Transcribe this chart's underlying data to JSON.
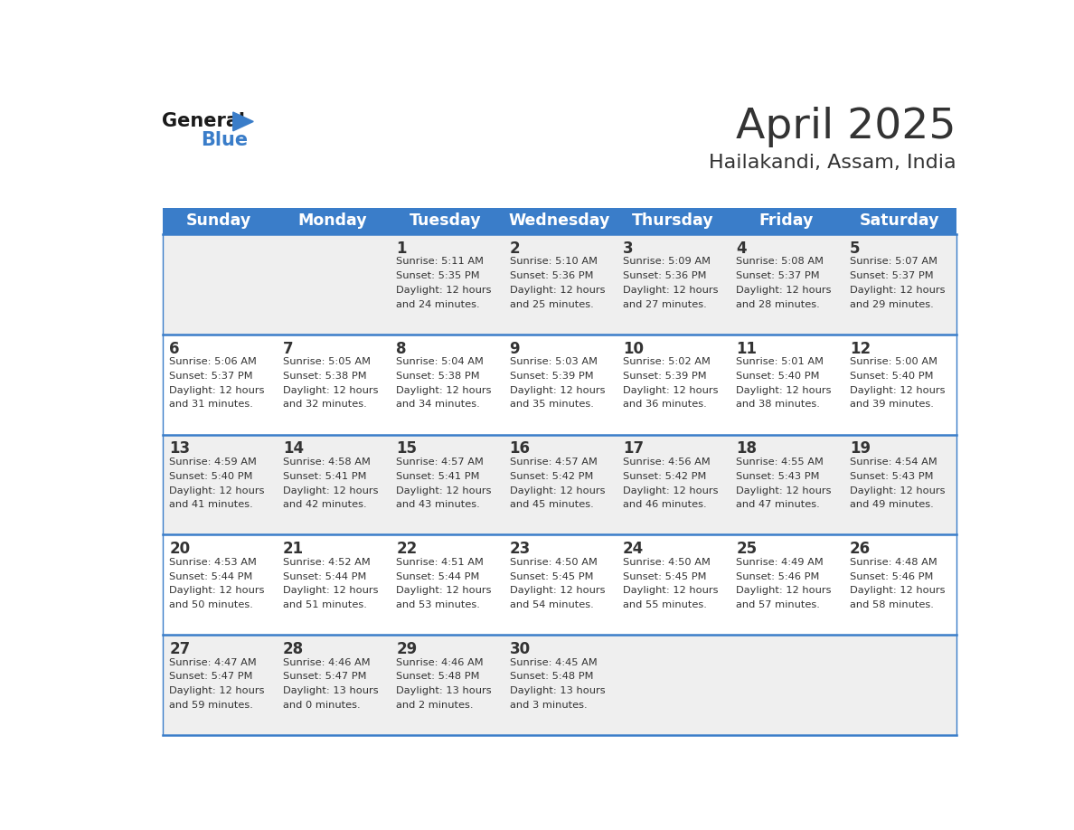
{
  "title": "April 2025",
  "subtitle": "Hailakandi, Assam, India",
  "days_header": [
    "Sunday",
    "Monday",
    "Tuesday",
    "Wednesday",
    "Thursday",
    "Friday",
    "Saturday"
  ],
  "header_bg": "#3A7DC9",
  "header_text_color": "#FFFFFF",
  "cell_bg_even": "#EFEFEF",
  "cell_bg_odd": "#FFFFFF",
  "text_color": "#333333",
  "row_line_color": "#3A7DC9",
  "outer_line_color": "#3A7DC9",
  "logo_general_color": "#1a1a1a",
  "logo_blue_color": "#3A7DC9",
  "weeks": [
    [
      {
        "day": null,
        "info": null
      },
      {
        "day": null,
        "info": null
      },
      {
        "day": 1,
        "info": {
          "sunrise": "5:11 AM",
          "sunset": "5:35 PM",
          "daylight": "12 hours and 24 minutes."
        }
      },
      {
        "day": 2,
        "info": {
          "sunrise": "5:10 AM",
          "sunset": "5:36 PM",
          "daylight": "12 hours and 25 minutes."
        }
      },
      {
        "day": 3,
        "info": {
          "sunrise": "5:09 AM",
          "sunset": "5:36 PM",
          "daylight": "12 hours and 27 minutes."
        }
      },
      {
        "day": 4,
        "info": {
          "sunrise": "5:08 AM",
          "sunset": "5:37 PM",
          "daylight": "12 hours and 28 minutes."
        }
      },
      {
        "day": 5,
        "info": {
          "sunrise": "5:07 AM",
          "sunset": "5:37 PM",
          "daylight": "12 hours and 29 minutes."
        }
      }
    ],
    [
      {
        "day": 6,
        "info": {
          "sunrise": "5:06 AM",
          "sunset": "5:37 PM",
          "daylight": "12 hours and 31 minutes."
        }
      },
      {
        "day": 7,
        "info": {
          "sunrise": "5:05 AM",
          "sunset": "5:38 PM",
          "daylight": "12 hours and 32 minutes."
        }
      },
      {
        "day": 8,
        "info": {
          "sunrise": "5:04 AM",
          "sunset": "5:38 PM",
          "daylight": "12 hours and 34 minutes."
        }
      },
      {
        "day": 9,
        "info": {
          "sunrise": "5:03 AM",
          "sunset": "5:39 PM",
          "daylight": "12 hours and 35 minutes."
        }
      },
      {
        "day": 10,
        "info": {
          "sunrise": "5:02 AM",
          "sunset": "5:39 PM",
          "daylight": "12 hours and 36 minutes."
        }
      },
      {
        "day": 11,
        "info": {
          "sunrise": "5:01 AM",
          "sunset": "5:40 PM",
          "daylight": "12 hours and 38 minutes."
        }
      },
      {
        "day": 12,
        "info": {
          "sunrise": "5:00 AM",
          "sunset": "5:40 PM",
          "daylight": "12 hours and 39 minutes."
        }
      }
    ],
    [
      {
        "day": 13,
        "info": {
          "sunrise": "4:59 AM",
          "sunset": "5:40 PM",
          "daylight": "12 hours and 41 minutes."
        }
      },
      {
        "day": 14,
        "info": {
          "sunrise": "4:58 AM",
          "sunset": "5:41 PM",
          "daylight": "12 hours and 42 minutes."
        }
      },
      {
        "day": 15,
        "info": {
          "sunrise": "4:57 AM",
          "sunset": "5:41 PM",
          "daylight": "12 hours and 43 minutes."
        }
      },
      {
        "day": 16,
        "info": {
          "sunrise": "4:57 AM",
          "sunset": "5:42 PM",
          "daylight": "12 hours and 45 minutes."
        }
      },
      {
        "day": 17,
        "info": {
          "sunrise": "4:56 AM",
          "sunset": "5:42 PM",
          "daylight": "12 hours and 46 minutes."
        }
      },
      {
        "day": 18,
        "info": {
          "sunrise": "4:55 AM",
          "sunset": "5:43 PM",
          "daylight": "12 hours and 47 minutes."
        }
      },
      {
        "day": 19,
        "info": {
          "sunrise": "4:54 AM",
          "sunset": "5:43 PM",
          "daylight": "12 hours and 49 minutes."
        }
      }
    ],
    [
      {
        "day": 20,
        "info": {
          "sunrise": "4:53 AM",
          "sunset": "5:44 PM",
          "daylight": "12 hours and 50 minutes."
        }
      },
      {
        "day": 21,
        "info": {
          "sunrise": "4:52 AM",
          "sunset": "5:44 PM",
          "daylight": "12 hours and 51 minutes."
        }
      },
      {
        "day": 22,
        "info": {
          "sunrise": "4:51 AM",
          "sunset": "5:44 PM",
          "daylight": "12 hours and 53 minutes."
        }
      },
      {
        "day": 23,
        "info": {
          "sunrise": "4:50 AM",
          "sunset": "5:45 PM",
          "daylight": "12 hours and 54 minutes."
        }
      },
      {
        "day": 24,
        "info": {
          "sunrise": "4:50 AM",
          "sunset": "5:45 PM",
          "daylight": "12 hours and 55 minutes."
        }
      },
      {
        "day": 25,
        "info": {
          "sunrise": "4:49 AM",
          "sunset": "5:46 PM",
          "daylight": "12 hours and 57 minutes."
        }
      },
      {
        "day": 26,
        "info": {
          "sunrise": "4:48 AM",
          "sunset": "5:46 PM",
          "daylight": "12 hours and 58 minutes."
        }
      }
    ],
    [
      {
        "day": 27,
        "info": {
          "sunrise": "4:47 AM",
          "sunset": "5:47 PM",
          "daylight": "12 hours and 59 minutes."
        }
      },
      {
        "day": 28,
        "info": {
          "sunrise": "4:46 AM",
          "sunset": "5:47 PM",
          "daylight": "13 hours and 0 minutes."
        }
      },
      {
        "day": 29,
        "info": {
          "sunrise": "4:46 AM",
          "sunset": "5:48 PM",
          "daylight": "13 hours and 2 minutes."
        }
      },
      {
        "day": 30,
        "info": {
          "sunrise": "4:45 AM",
          "sunset": "5:48 PM",
          "daylight": "13 hours and 3 minutes."
        }
      },
      {
        "day": null,
        "info": null
      },
      {
        "day": null,
        "info": null
      },
      {
        "day": null,
        "info": null
      }
    ]
  ]
}
